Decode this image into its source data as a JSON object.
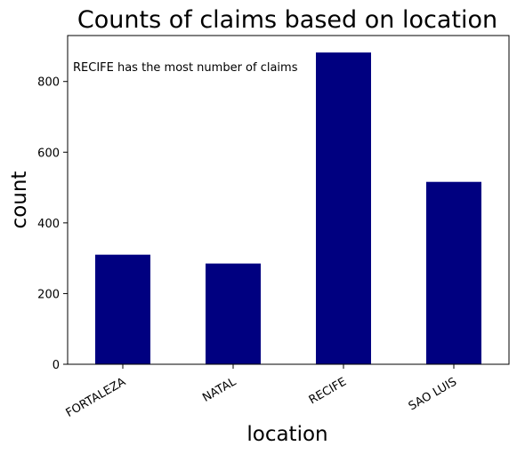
{
  "chart_data": {
    "type": "bar",
    "title": "Counts of claims based on location",
    "xlabel": "location",
    "ylabel": "count",
    "categories": [
      "FORTALEZA",
      "NATAL",
      "RECIFE",
      "SAO LUIS"
    ],
    "values": [
      310,
      285,
      882,
      516
    ],
    "ylim": [
      0,
      930
    ],
    "yticks": [
      0,
      200,
      400,
      600,
      800
    ],
    "bar_color": "#000080",
    "grid": false,
    "annotation": "RECIFE has the most number of claims"
  }
}
